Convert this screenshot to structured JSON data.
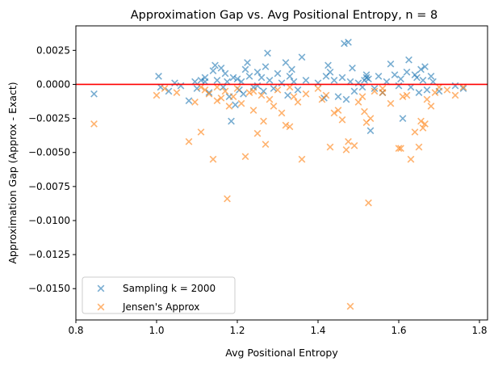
{
  "chart_data": {
    "type": "scatter",
    "title": "Approximation Gap vs. Avg Positional Entropy, n = 8",
    "xlabel": "Avg Positional Entropy",
    "ylabel": "Approximation Gap (Approx - Exact)",
    "xlim": [
      0.8,
      1.82
    ],
    "ylim": [
      -0.0173,
      0.0043
    ],
    "xticks": [
      0.8,
      1.0,
      1.2,
      1.4,
      1.6,
      1.8
    ],
    "xtick_labels": [
      "0.8",
      "1.0",
      "1.2",
      "1.4",
      "1.6",
      "1.8"
    ],
    "yticks": [
      0.0025,
      0.0,
      -0.0025,
      -0.005,
      -0.0075,
      -0.01,
      -0.0125,
      -0.015
    ],
    "ytick_labels": [
      "0.0025",
      "0.0000",
      "−0.0025",
      "−0.0050",
      "−0.0075",
      "−0.0100",
      "−0.0125",
      "−0.0150"
    ],
    "grid": false,
    "legend_position": "lower-left",
    "reference_line": {
      "y": 0.0,
      "color": "#ff0000"
    },
    "series": [
      {
        "name": "Sampling k = 2000",
        "color": "#1f77b4",
        "marker": "x",
        "points": [
          [
            0.845,
            -0.0007
          ],
          [
            1.005,
            0.0006
          ],
          [
            1.01,
            -0.0002
          ],
          [
            1.03,
            -0.0005
          ],
          [
            1.045,
            0.0001
          ],
          [
            1.06,
            -0.0001
          ],
          [
            1.08,
            -0.0012
          ],
          [
            1.095,
            0.0002
          ],
          [
            1.1,
            -0.0003
          ],
          [
            1.11,
            0.0003
          ],
          [
            1.12,
            0.0005
          ],
          [
            1.13,
            -0.0006
          ],
          [
            1.14,
            0.001
          ],
          [
            1.145,
            0.0014
          ],
          [
            1.15,
            0.0003
          ],
          [
            1.16,
            0.0012
          ],
          [
            1.165,
            -0.0002
          ],
          [
            1.17,
            0.0008
          ],
          [
            1.175,
            0.0002
          ],
          [
            1.18,
            -0.0009
          ],
          [
            1.185,
            -0.0027
          ],
          [
            1.19,
            0.0005
          ],
          [
            1.195,
            -0.0015
          ],
          [
            1.2,
            0.0004
          ],
          [
            1.205,
            -0.0004
          ],
          [
            1.21,
            0.0002
          ],
          [
            1.215,
            -0.0007
          ],
          [
            1.22,
            0.0011
          ],
          [
            1.225,
            0.0016
          ],
          [
            1.23,
            0.0006
          ],
          [
            1.24,
            -0.0002
          ],
          [
            1.25,
            0.0009
          ],
          [
            1.26,
            0.0005
          ],
          [
            1.265,
            -0.0005
          ],
          [
            1.27,
            0.0013
          ],
          [
            1.275,
            0.0023
          ],
          [
            1.28,
            0.0003
          ],
          [
            1.29,
            -0.0003
          ],
          [
            1.3,
            0.0008
          ],
          [
            1.31,
            0.0001
          ],
          [
            1.32,
            0.0016
          ],
          [
            1.325,
            -0.0008
          ],
          [
            1.33,
            0.0006
          ],
          [
            1.335,
            0.0011
          ],
          [
            1.34,
            0.0002
          ],
          [
            1.35,
            -0.0004
          ],
          [
            1.36,
            0.002
          ],
          [
            1.37,
            0.0003
          ],
          [
            1.4,
            0.0001
          ],
          [
            1.415,
            -0.001
          ],
          [
            1.42,
            0.0006
          ],
          [
            1.425,
            0.0014
          ],
          [
            1.43,
            0.0009
          ],
          [
            1.44,
            0.0003
          ],
          [
            1.45,
            -0.0009
          ],
          [
            1.46,
            0.0005
          ],
          [
            1.465,
            0.003
          ],
          [
            1.47,
            -0.0011
          ],
          [
            1.475,
            0.0031
          ],
          [
            1.48,
            0.0002
          ],
          [
            1.485,
            0.0012
          ],
          [
            1.49,
            -0.0005
          ],
          [
            1.5,
            0.0001
          ],
          [
            1.51,
            -0.0002
          ],
          [
            1.515,
            0.0003
          ],
          [
            1.52,
            0.0005
          ],
          [
            1.525,
            0.0004
          ],
          [
            1.53,
            -0.0034
          ],
          [
            1.54,
            -0.0003
          ],
          [
            1.55,
            0.0006
          ],
          [
            1.56,
            -0.0006
          ],
          [
            1.57,
            0.0002
          ],
          [
            1.58,
            0.0015
          ],
          [
            1.59,
            0.0007
          ],
          [
            1.6,
            -0.0001
          ],
          [
            1.605,
            0.0004
          ],
          [
            1.61,
            -0.0025
          ],
          [
            1.62,
            0.0009
          ],
          [
            1.625,
            0.0018
          ],
          [
            1.63,
            -0.0002
          ],
          [
            1.64,
            0.0007
          ],
          [
            1.645,
            0.0005
          ],
          [
            1.65,
            -0.0006
          ],
          [
            1.655,
            0.0011
          ],
          [
            1.66,
            0.0003
          ],
          [
            1.665,
            0.0013
          ],
          [
            1.67,
            -0.0004
          ],
          [
            1.68,
            0.0006
          ],
          [
            1.685,
            0.0002
          ],
          [
            1.7,
            -0.0005
          ],
          [
            1.74,
            -0.0001
          ],
          [
            1.76,
            -0.0003
          ],
          [
            1.12,
            0.0002
          ],
          [
            1.25,
            -0.0001
          ],
          [
            1.52,
            0.0007
          ]
        ]
      },
      {
        "name": "Jensen's Approx",
        "color": "#ff7f0e",
        "marker": "x",
        "points": [
          [
            0.845,
            -0.0029
          ],
          [
            1.0,
            -0.0008
          ],
          [
            1.02,
            -0.0003
          ],
          [
            1.05,
            -0.0006
          ],
          [
            1.08,
            -0.0042
          ],
          [
            1.095,
            -0.0013
          ],
          [
            1.11,
            -0.0035
          ],
          [
            1.12,
            -0.0004
          ],
          [
            1.13,
            -0.0007
          ],
          [
            1.14,
            -0.0055
          ],
          [
            1.15,
            -0.0002
          ],
          [
            1.16,
            -0.001
          ],
          [
            1.17,
            -0.0005
          ],
          [
            1.175,
            -0.0084
          ],
          [
            1.18,
            -0.0016
          ],
          [
            1.19,
            -0.0009
          ],
          [
            1.2,
            -0.0003
          ],
          [
            1.21,
            -0.0014
          ],
          [
            1.22,
            -0.0053
          ],
          [
            1.23,
            -0.0006
          ],
          [
            1.24,
            -0.0019
          ],
          [
            1.25,
            -0.0036
          ],
          [
            1.26,
            -0.0008
          ],
          [
            1.265,
            -0.0027
          ],
          [
            1.27,
            -0.0044
          ],
          [
            1.28,
            -0.0011
          ],
          [
            1.29,
            -0.0016
          ],
          [
            1.3,
            -0.0004
          ],
          [
            1.31,
            -0.0021
          ],
          [
            1.32,
            -0.003
          ],
          [
            1.33,
            -0.0031
          ],
          [
            1.34,
            -0.0009
          ],
          [
            1.35,
            -0.0013
          ],
          [
            1.36,
            -0.0055
          ],
          [
            1.37,
            -0.0007
          ],
          [
            1.4,
            -0.0003
          ],
          [
            1.42,
            -0.0008
          ],
          [
            1.43,
            -0.0046
          ],
          [
            1.44,
            -0.0021
          ],
          [
            1.45,
            -0.0019
          ],
          [
            1.46,
            -0.0026
          ],
          [
            1.47,
            -0.0048
          ],
          [
            1.475,
            -0.0042
          ],
          [
            1.48,
            -0.0163
          ],
          [
            1.49,
            -0.0045
          ],
          [
            1.5,
            -0.0013
          ],
          [
            1.51,
            -0.0009
          ],
          [
            1.515,
            -0.002
          ],
          [
            1.52,
            -0.0028
          ],
          [
            1.525,
            -0.0087
          ],
          [
            1.53,
            -0.0025
          ],
          [
            1.54,
            -0.0005
          ],
          [
            1.56,
            -0.0006
          ],
          [
            1.58,
            -0.0014
          ],
          [
            1.6,
            -0.0047
          ],
          [
            1.605,
            -0.0047
          ],
          [
            1.62,
            -0.0008
          ],
          [
            1.63,
            -0.0055
          ],
          [
            1.64,
            -0.0035
          ],
          [
            1.65,
            -0.0046
          ],
          [
            1.655,
            -0.0027
          ],
          [
            1.66,
            -0.0032
          ],
          [
            1.665,
            -0.0029
          ],
          [
            1.67,
            -0.0011
          ],
          [
            1.68,
            -0.0016
          ],
          [
            1.69,
            -0.0006
          ],
          [
            1.72,
            -0.0004
          ],
          [
            1.74,
            -0.0008
          ],
          [
            1.76,
            -0.0002
          ],
          [
            1.11,
            -0.0002
          ],
          [
            1.15,
            -0.0012
          ],
          [
            1.24,
            -0.0005
          ],
          [
            1.33,
            -0.0002
          ],
          [
            1.41,
            -0.0011
          ],
          [
            1.56,
            -0.0003
          ],
          [
            1.61,
            -0.0009
          ],
          [
            1.7,
            -0.0002
          ]
        ]
      }
    ]
  }
}
